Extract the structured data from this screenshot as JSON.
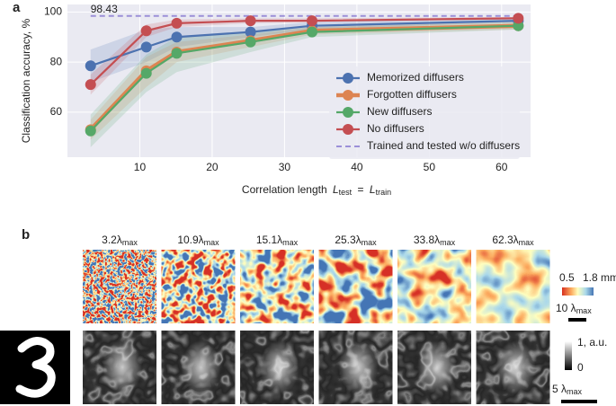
{
  "chart_data": {
    "type": "line",
    "ylabel": "Classification accuracy, %",
    "xlabel": [
      "Correlation length",
      "L",
      "test",
      "=",
      "L",
      "train"
    ],
    "x": [
      3.2,
      10.9,
      15.1,
      25.3,
      33.8,
      62.3
    ],
    "xlim": [
      0,
      64
    ],
    "xticks": [
      10,
      20,
      30,
      40,
      50,
      60
    ],
    "ylim": [
      42,
      103
    ],
    "yticks": [
      60,
      80,
      100
    ],
    "grid": true,
    "legend": "lower right",
    "series": [
      {
        "name": "Memorized diffusers",
        "color": "#4c72b0",
        "values": [
          78.5,
          86,
          90,
          92,
          94.5,
          96.5
        ],
        "lower": [
          72,
          80,
          86,
          90,
          93,
          96
        ],
        "upper": [
          85,
          93,
          94,
          94,
          96,
          97.5
        ]
      },
      {
        "name": "Forgotten diffusers",
        "color": "#dd8452",
        "values": [
          53,
          76.5,
          84,
          88.5,
          92.5,
          94.5
        ],
        "lower": [
          49,
          70,
          80,
          86,
          91,
          93
        ],
        "upper": [
          57,
          82,
          88,
          91,
          94,
          96
        ]
      },
      {
        "name": "New diffusers",
        "color": "#55a868",
        "values": [
          52.5,
          75.5,
          83.5,
          88,
          92,
          94.5
        ],
        "lower": [
          46,
          68,
          76,
          84,
          90,
          93
        ],
        "upper": [
          59,
          83,
          90,
          92,
          94,
          96
        ]
      },
      {
        "name": "No diffusers",
        "color": "#c44e52",
        "values": [
          71,
          92.5,
          95.5,
          96.5,
          96.5,
          97.5
        ],
        "lower": [
          67,
          90,
          94,
          95.5,
          96,
          97
        ],
        "upper": [
          75,
          95,
          97,
          97.5,
          97.5,
          98
        ]
      }
    ],
    "reference": {
      "name": "Trained and tested w/o diffusers",
      "value": 98.43,
      "color": "#9b8fd8"
    }
  },
  "panel_labels": [
    "a",
    "b"
  ],
  "panel_b": {
    "columns": [
      {
        "text": "3.2λ",
        "sub": "max"
      },
      {
        "text": "10.9λ",
        "sub": "max"
      },
      {
        "text": "15.1λ",
        "sub": "max"
      },
      {
        "text": "25.3λ",
        "sub": "max"
      },
      {
        "text": "33.8λ",
        "sub": "max"
      },
      {
        "text": "62.3λ",
        "sub": "max"
      }
    ],
    "height_colorbar": {
      "min": "0.5",
      "max": "1.8 mm"
    },
    "height_scale": {
      "text": "10 λ",
      "sub": "max"
    },
    "intensity_colorbar": {
      "max": "1, a.u.",
      "min": "0"
    },
    "intensity_scale": {
      "text": "5 λ",
      "sub": "max"
    }
  }
}
